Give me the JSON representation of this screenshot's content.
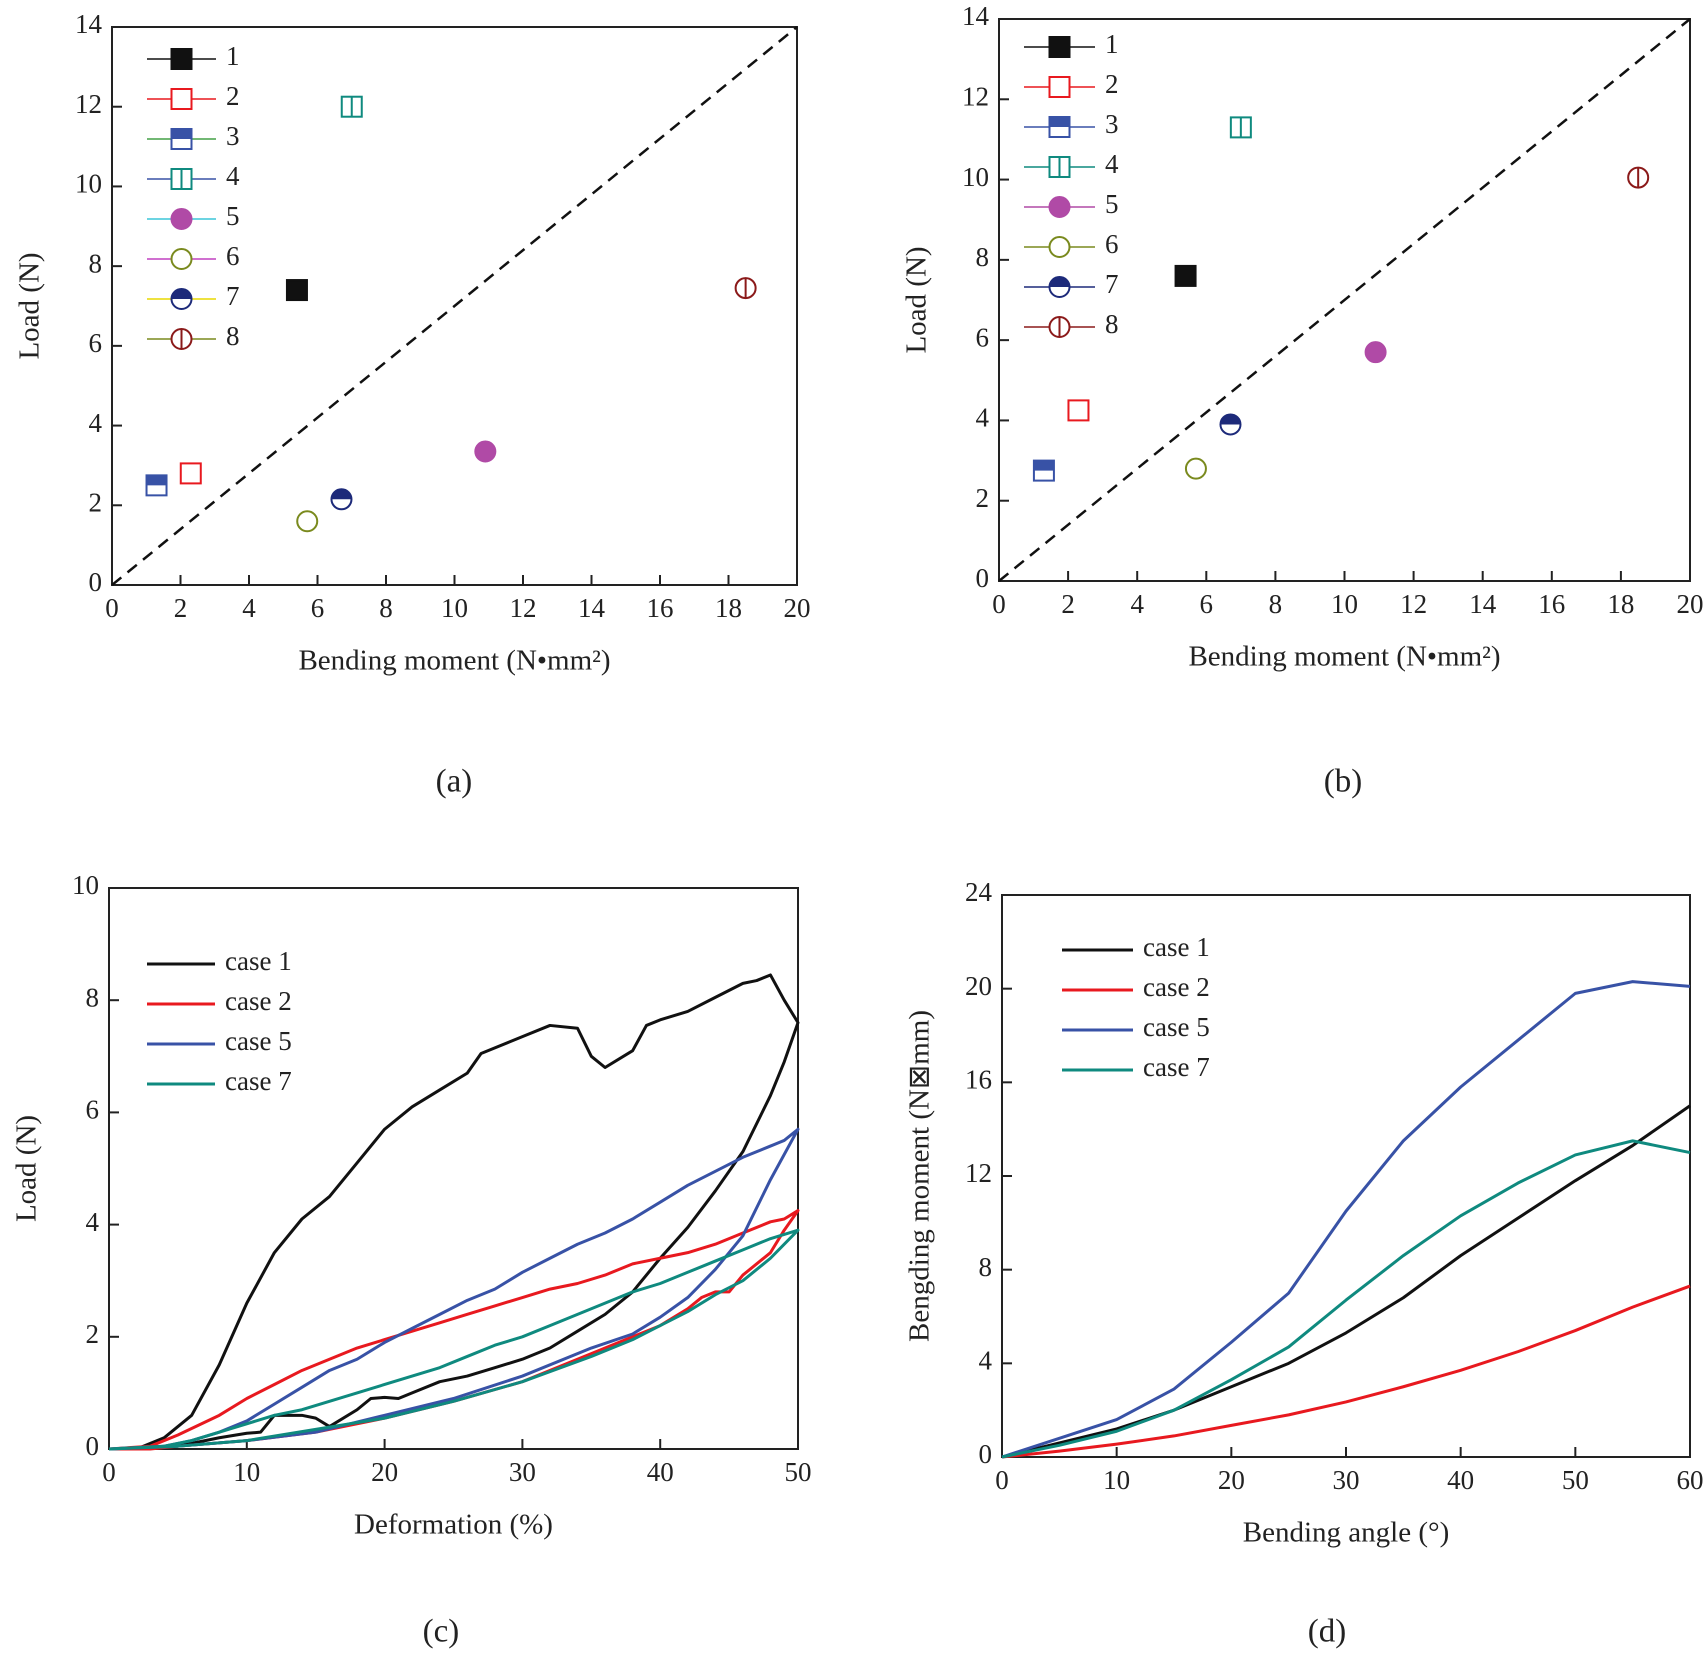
{
  "chart_data": [
    {
      "type": "scatter",
      "caption": "(a)",
      "x_label": "Bending moment (N•mm²)",
      "y_label": "Load (N)",
      "xlim": [
        0,
        20
      ],
      "ylim": [
        0,
        14
      ],
      "xticks": [
        0,
        2,
        4,
        6,
        8,
        10,
        12,
        14,
        16,
        18,
        20
      ],
      "yticks": [
        0,
        2,
        4,
        6,
        8,
        10,
        12,
        14
      ],
      "diagonal": true,
      "legend": "upper left",
      "series": [
        {
          "name": "1",
          "color": "#111111",
          "line_color": "#111111",
          "marker": "square-filled",
          "x": [
            5.4
          ],
          "values": [
            7.4
          ]
        },
        {
          "name": "2",
          "color": "#e8191f",
          "line_color": "#e8191f",
          "marker": "square-open",
          "x": [
            2.3
          ],
          "values": [
            2.8
          ]
        },
        {
          "name": "3",
          "color": "#3852a6",
          "line_color": "#43a047",
          "marker": "square-half",
          "x": [
            1.3
          ],
          "values": [
            2.5
          ]
        },
        {
          "name": "4",
          "color": "#0f8a7f",
          "line_color": "#3852a6",
          "marker": "square-vline",
          "x": [
            7.0
          ],
          "values": [
            12.0
          ]
        },
        {
          "name": "5",
          "color": "#b04aa6",
          "line_color": "#3cc6d8",
          "marker": "circle-filled",
          "x": [
            10.9
          ],
          "values": [
            3.35
          ]
        },
        {
          "name": "6",
          "color": "#7a8a1e",
          "line_color": "#c040c0",
          "marker": "circle-open",
          "x": [
            5.7
          ],
          "values": [
            1.6
          ]
        },
        {
          "name": "7",
          "color": "#1d2a7a",
          "line_color": "#e8d800",
          "marker": "circle-half",
          "x": [
            6.7
          ],
          "values": [
            2.15
          ]
        },
        {
          "name": "8",
          "color": "#8b1a1a",
          "line_color": "#7a8a1e",
          "marker": "circle-vline",
          "x": [
            18.5
          ],
          "values": [
            7.45
          ]
        }
      ]
    },
    {
      "type": "scatter",
      "caption": "(b)",
      "x_label": "Bending moment (N•mm²)",
      "y_label": "Load (N)",
      "xlim": [
        0,
        20
      ],
      "ylim": [
        0,
        14
      ],
      "xticks": [
        0,
        2,
        4,
        6,
        8,
        10,
        12,
        14,
        16,
        18,
        20
      ],
      "yticks": [
        0,
        2,
        4,
        6,
        8,
        10,
        12,
        14
      ],
      "diagonal": true,
      "legend": "upper left",
      "series": [
        {
          "name": "1",
          "color": "#111111",
          "line_color": "#111111",
          "marker": "square-filled",
          "x": [
            5.4
          ],
          "values": [
            7.6
          ]
        },
        {
          "name": "2",
          "color": "#e8191f",
          "line_color": "#e8191f",
          "marker": "square-open",
          "x": [
            2.3
          ],
          "values": [
            4.25
          ]
        },
        {
          "name": "3",
          "color": "#3852a6",
          "line_color": "#3852a6",
          "marker": "square-half",
          "x": [
            1.3
          ],
          "values": [
            2.75
          ]
        },
        {
          "name": "4",
          "color": "#0f8a7f",
          "line_color": "#0f8a7f",
          "marker": "square-vline",
          "x": [
            7.0
          ],
          "values": [
            11.3
          ]
        },
        {
          "name": "5",
          "color": "#b04aa6",
          "line_color": "#b04aa6",
          "marker": "circle-filled",
          "x": [
            10.9
          ],
          "values": [
            5.7
          ]
        },
        {
          "name": "6",
          "color": "#7a8a1e",
          "line_color": "#7a8a1e",
          "marker": "circle-open",
          "x": [
            5.7
          ],
          "values": [
            2.8
          ]
        },
        {
          "name": "7",
          "color": "#1d2a7a",
          "line_color": "#1d2a7a",
          "marker": "circle-half",
          "x": [
            6.7
          ],
          "values": [
            3.9
          ]
        },
        {
          "name": "8",
          "color": "#8b1a1a",
          "line_color": "#8b1a1a",
          "marker": "circle-vline",
          "x": [
            18.5
          ],
          "values": [
            10.05
          ]
        }
      ]
    },
    {
      "type": "line",
      "caption": "(c)",
      "x_label": "Deformation (%)",
      "y_label": "Load (N)",
      "xlim": [
        0,
        50
      ],
      "ylim": [
        0,
        10
      ],
      "xticks": [
        0,
        10,
        20,
        30,
        40,
        50
      ],
      "yticks": [
        0,
        2,
        4,
        6,
        8,
        10
      ],
      "legend": "upper left",
      "series": [
        {
          "name": "case 1",
          "color": "#111111",
          "x": [
            0,
            2,
            4,
            5,
            6,
            8,
            10,
            12,
            14,
            16,
            18,
            20,
            22,
            24,
            26,
            27,
            29,
            30,
            32,
            34,
            35,
            36,
            38,
            39,
            40,
            42,
            44,
            46,
            47,
            48,
            49,
            50,
            49,
            48,
            46,
            44,
            42,
            40,
            38,
            36,
            34,
            32,
            30,
            28,
            26,
            24,
            22,
            21,
            20,
            19,
            18,
            16,
            15,
            14,
            12,
            11,
            10,
            8,
            6,
            4,
            2,
            0
          ],
          "values": [
            0,
            0,
            0.2,
            0.4,
            0.6,
            1.5,
            2.6,
            3.5,
            4.1,
            4.5,
            5.1,
            5.7,
            6.1,
            6.4,
            6.7,
            7.05,
            7.25,
            7.35,
            7.55,
            7.5,
            7.0,
            6.8,
            7.1,
            7.55,
            7.65,
            7.8,
            8.05,
            8.3,
            8.35,
            8.45,
            8.0,
            7.6,
            6.9,
            6.3,
            5.3,
            4.6,
            3.95,
            3.4,
            2.8,
            2.4,
            2.1,
            1.8,
            1.6,
            1.45,
            1.3,
            1.2,
            1.0,
            0.9,
            0.92,
            0.9,
            0.7,
            0.4,
            0.55,
            0.6,
            0.6,
            0.3,
            0.28,
            0.2,
            0.1,
            0.05,
            0,
            0
          ]
        },
        {
          "name": "case 2",
          "color": "#e8191f",
          "x": [
            0,
            3,
            5,
            8,
            10,
            12,
            14,
            16,
            18,
            20,
            22,
            24,
            26,
            28,
            30,
            32,
            34,
            36,
            38,
            40,
            42,
            44,
            46,
            48,
            49,
            50,
            49,
            48,
            46,
            45,
            44,
            43,
            42,
            40,
            38,
            35,
            30,
            25,
            20,
            15,
            10,
            5,
            3,
            0
          ],
          "values": [
            0,
            0.05,
            0.25,
            0.6,
            0.9,
            1.15,
            1.4,
            1.6,
            1.8,
            1.95,
            2.1,
            2.25,
            2.4,
            2.55,
            2.7,
            2.85,
            2.95,
            3.1,
            3.3,
            3.4,
            3.5,
            3.65,
            3.85,
            4.05,
            4.1,
            4.25,
            3.9,
            3.5,
            3.1,
            2.8,
            2.8,
            2.7,
            2.5,
            2.2,
            2.0,
            1.7,
            1.2,
            0.85,
            0.55,
            0.3,
            0.15,
            0.05,
            0,
            0
          ]
        },
        {
          "name": "case 5",
          "color": "#3852a6",
          "x": [
            0,
            4,
            6,
            8,
            10,
            12,
            14,
            16,
            18,
            20,
            22,
            24,
            26,
            28,
            30,
            32,
            34,
            36,
            38,
            40,
            42,
            44,
            46,
            48,
            49,
            50,
            48,
            46,
            44,
            42,
            40,
            38,
            35,
            30,
            25,
            20,
            15,
            10,
            5,
            0
          ],
          "values": [
            0,
            0.05,
            0.15,
            0.3,
            0.5,
            0.8,
            1.1,
            1.4,
            1.6,
            1.9,
            2.15,
            2.4,
            2.65,
            2.85,
            3.15,
            3.4,
            3.65,
            3.85,
            4.1,
            4.4,
            4.7,
            4.95,
            5.2,
            5.4,
            5.5,
            5.7,
            4.8,
            3.8,
            3.2,
            2.7,
            2.35,
            2.05,
            1.8,
            1.3,
            0.9,
            0.6,
            0.3,
            0.15,
            0.05,
            0
          ]
        },
        {
          "name": "case 7",
          "color": "#0f8a7f",
          "x": [
            0,
            4,
            6,
            8,
            10,
            12,
            14,
            16,
            18,
            20,
            22,
            24,
            26,
            28,
            30,
            32,
            34,
            36,
            38,
            40,
            42,
            44,
            46,
            48,
            50,
            48,
            46,
            44,
            42,
            40,
            38,
            35,
            30,
            25,
            20,
            15,
            10,
            5,
            0
          ],
          "values": [
            0,
            0.05,
            0.15,
            0.3,
            0.45,
            0.6,
            0.7,
            0.85,
            1.0,
            1.15,
            1.3,
            1.45,
            1.65,
            1.85,
            2.0,
            2.2,
            2.4,
            2.6,
            2.8,
            2.95,
            3.15,
            3.35,
            3.55,
            3.75,
            3.9,
            3.4,
            3.0,
            2.75,
            2.45,
            2.2,
            1.95,
            1.65,
            1.2,
            0.85,
            0.55,
            0.35,
            0.15,
            0.05,
            0
          ]
        }
      ]
    },
    {
      "type": "line",
      "caption": "(d)",
      "x_label": "Bending angle (°)",
      "y_label": "Bengding moment (N⊠mm)",
      "xlim": [
        0,
        60
      ],
      "ylim": [
        0,
        24
      ],
      "xticks": [
        0,
        10,
        20,
        30,
        40,
        50,
        60
      ],
      "yticks": [
        0,
        4,
        8,
        12,
        16,
        20,
        24
      ],
      "legend": "upper left",
      "x": [
        0,
        5,
        10,
        15,
        20,
        25,
        30,
        35,
        40,
        45,
        50,
        55,
        60
      ],
      "series": [
        {
          "name": "case 1",
          "color": "#111111",
          "values": [
            0,
            0.6,
            1.2,
            2.0,
            3.0,
            4.0,
            5.3,
            6.8,
            8.6,
            10.2,
            11.8,
            13.3,
            15.0
          ]
        },
        {
          "name": "case 2",
          "color": "#e8191f",
          "values": [
            0,
            0.25,
            0.55,
            0.9,
            1.35,
            1.8,
            2.35,
            3.0,
            3.7,
            4.5,
            5.4,
            6.4,
            7.3
          ]
        },
        {
          "name": "case 5",
          "color": "#3852a6",
          "values": [
            0,
            0.8,
            1.6,
            2.9,
            4.9,
            7.0,
            10.5,
            13.5,
            15.8,
            17.8,
            19.8,
            20.3,
            20.1
          ]
        },
        {
          "name": "case 7",
          "color": "#0f8a7f",
          "values": [
            0,
            0.5,
            1.1,
            2.0,
            3.3,
            4.7,
            6.7,
            8.6,
            10.3,
            11.7,
            12.9,
            13.5,
            13.0
          ]
        }
      ]
    }
  ]
}
